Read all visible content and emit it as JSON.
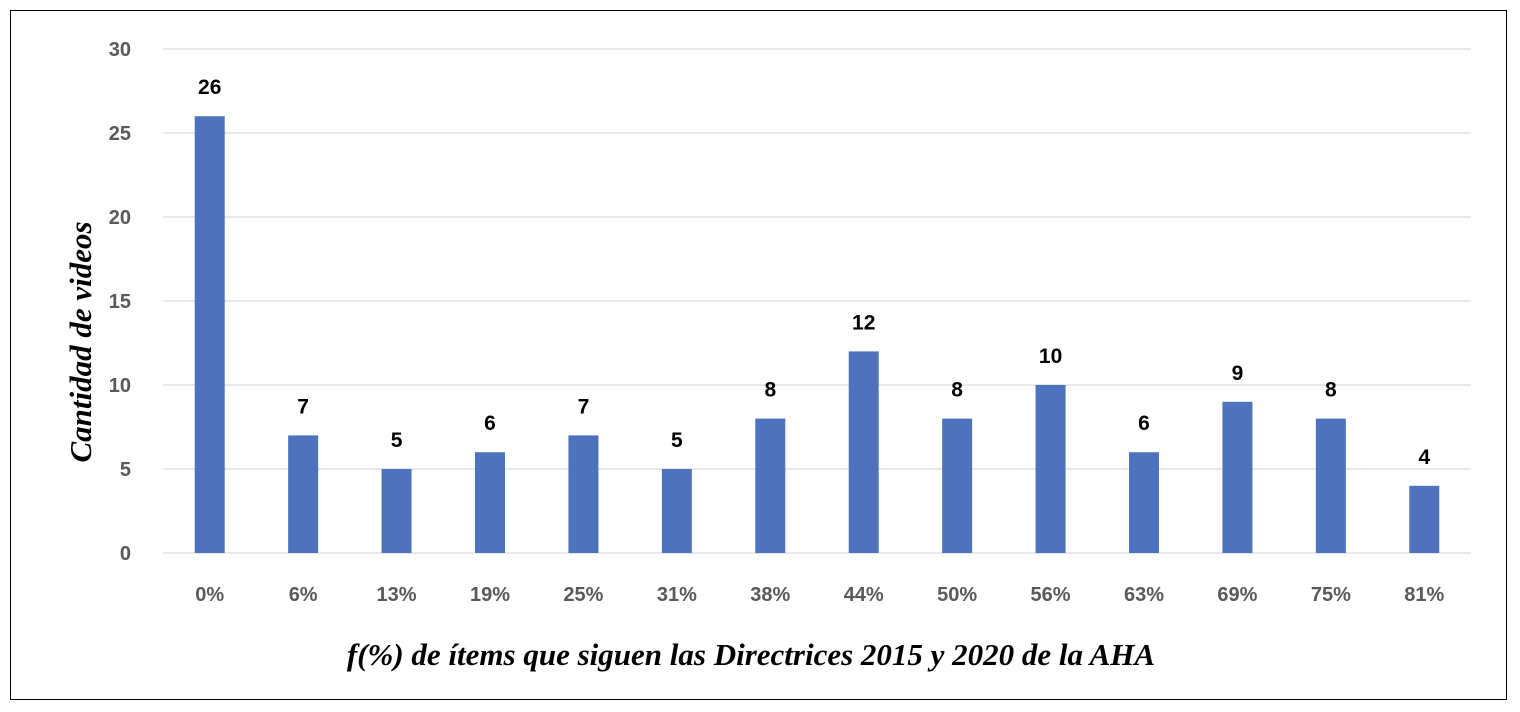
{
  "chart_data": {
    "type": "bar",
    "title": "",
    "xlabel": "f(%) de ítems que siguen las Directrices 2015 y 2020 de la AHA",
    "ylabel": "Cantidad de videos",
    "categories": [
      "0%",
      "6%",
      "13%",
      "19%",
      "25%",
      "31%",
      "38%",
      "44%",
      "50%",
      "56%",
      "63%",
      "69%",
      "75%",
      "81%"
    ],
    "values": [
      26,
      7,
      5,
      6,
      7,
      5,
      8,
      12,
      8,
      10,
      6,
      9,
      8,
      4
    ],
    "ylim": [
      0,
      30
    ],
    "yticks": [
      0,
      5,
      10,
      15,
      20,
      25,
      30
    ],
    "grid": true,
    "legend": "none",
    "data_labels": true,
    "bar_color": "#4f72be",
    "grid_color": "#d9d9d9",
    "tick_label_color": "#595959"
  }
}
